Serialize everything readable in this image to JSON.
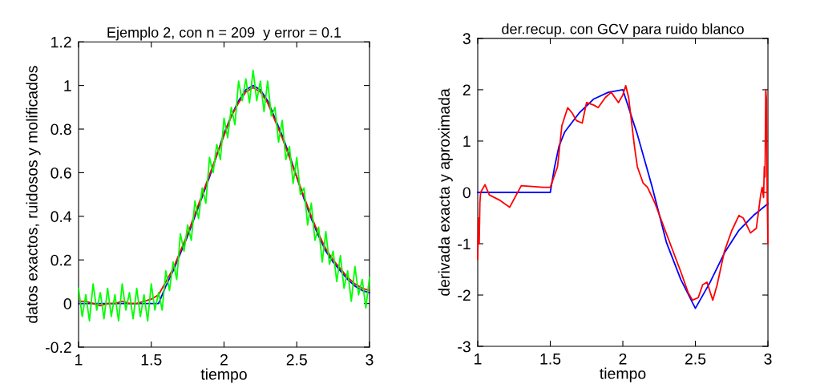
{
  "chart_data": [
    {
      "type": "line",
      "title": "Ejemplo 2, con n = 209  y error = 0.1",
      "xlabel": "tiempo",
      "ylabel": "datos exactos, ruidosos y molificados",
      "xlim": [
        1,
        3
      ],
      "ylim": [
        -0.2,
        1.2
      ],
      "xticks": [
        1,
        1.5,
        2,
        2.5,
        3
      ],
      "yticks": [
        -0.2,
        0,
        0.2,
        0.4,
        0.6,
        0.8,
        1,
        1.2
      ],
      "grid": false,
      "series": [
        {
          "color": "#0000ff",
          "x": [
            1.0,
            1.05,
            1.1,
            1.15,
            1.2,
            1.25,
            1.3,
            1.35,
            1.4,
            1.45,
            1.5,
            1.55,
            1.6,
            1.65,
            1.7,
            1.75,
            1.8,
            1.85,
            1.9,
            1.95,
            2.0,
            2.05,
            2.1,
            2.15,
            2.2,
            2.25,
            2.3,
            2.35,
            2.4,
            2.45,
            2.5,
            2.55,
            2.6,
            2.65,
            2.7,
            2.75,
            2.8,
            2.85,
            2.9,
            2.95,
            3.0
          ],
          "values": [
            0,
            0,
            0,
            0,
            0,
            0,
            0,
            0,
            0,
            0,
            0,
            0,
            0.08,
            0.15,
            0.23,
            0.31,
            0.4,
            0.49,
            0.58,
            0.68,
            0.78,
            0.86,
            0.93,
            0.98,
            1.0,
            0.98,
            0.93,
            0.85,
            0.77,
            0.68,
            0.58,
            0.48,
            0.39,
            0.31,
            0.24,
            0.19,
            0.15,
            0.11,
            0.08,
            0.06,
            0.05
          ]
        },
        {
          "color": "#ff0000",
          "x": [
            1.0,
            1.05,
            1.1,
            1.15,
            1.2,
            1.25,
            1.3,
            1.35,
            1.4,
            1.45,
            1.5,
            1.55,
            1.6,
            1.65,
            1.7,
            1.75,
            1.8,
            1.85,
            1.9,
            1.95,
            2.0,
            2.05,
            2.1,
            2.15,
            2.2,
            2.25,
            2.3,
            2.35,
            2.4,
            2.45,
            2.5,
            2.55,
            2.6,
            2.65,
            2.7,
            2.75,
            2.8,
            2.85,
            2.9,
            2.95,
            3.0
          ],
          "values": [
            0.01,
            0.01,
            0,
            -0.01,
            0,
            0,
            0.01,
            0,
            0,
            0.01,
            0.02,
            0.04,
            0.1,
            0.16,
            0.24,
            0.32,
            0.41,
            0.5,
            0.59,
            0.68,
            0.77,
            0.86,
            0.92,
            0.97,
            0.99,
            0.97,
            0.92,
            0.84,
            0.76,
            0.67,
            0.58,
            0.49,
            0.4,
            0.32,
            0.25,
            0.2,
            0.16,
            0.12,
            0.09,
            0.07,
            0.06
          ]
        },
        {
          "color": "#00ff00",
          "x": [
            1.0,
            1.025,
            1.05,
            1.075,
            1.1,
            1.125,
            1.15,
            1.175,
            1.2,
            1.225,
            1.25,
            1.275,
            1.3,
            1.325,
            1.35,
            1.375,
            1.4,
            1.425,
            1.45,
            1.475,
            1.5,
            1.525,
            1.55,
            1.575,
            1.6,
            1.625,
            1.65,
            1.675,
            1.7,
            1.725,
            1.75,
            1.775,
            1.8,
            1.825,
            1.85,
            1.875,
            1.9,
            1.925,
            1.95,
            1.975,
            2.0,
            2.025,
            2.05,
            2.075,
            2.1,
            2.125,
            2.15,
            2.175,
            2.2,
            2.225,
            2.25,
            2.275,
            2.3,
            2.325,
            2.35,
            2.375,
            2.4,
            2.425,
            2.45,
            2.475,
            2.5,
            2.525,
            2.55,
            2.575,
            2.6,
            2.625,
            2.65,
            2.675,
            2.7,
            2.725,
            2.75,
            2.775,
            2.8,
            2.825,
            2.85,
            2.875,
            2.9,
            2.925,
            2.95,
            2.975,
            3.0
          ],
          "values": [
            0.07,
            -0.06,
            0.04,
            -0.08,
            0.09,
            -0.03,
            0.05,
            -0.07,
            0.07,
            -0.06,
            0.04,
            -0.08,
            0.09,
            -0.03,
            0.05,
            -0.07,
            0.07,
            -0.06,
            0.04,
            -0.08,
            0.09,
            -0.03,
            0.05,
            -0.03,
            0.15,
            0.06,
            0.19,
            0.11,
            0.32,
            0.24,
            0.36,
            0.29,
            0.47,
            0.39,
            0.53,
            0.46,
            0.67,
            0.6,
            0.73,
            0.66,
            0.85,
            0.76,
            0.9,
            0.82,
            1.02,
            0.93,
            1.03,
            0.92,
            1.07,
            0.93,
            1.02,
            0.88,
            1.02,
            0.86,
            0.9,
            0.74,
            0.84,
            0.66,
            0.72,
            0.55,
            0.67,
            0.5,
            0.53,
            0.36,
            0.46,
            0.29,
            0.35,
            0.19,
            0.33,
            0.18,
            0.24,
            0.1,
            0.22,
            0.07,
            0.15,
            0.01,
            0.17,
            0.04,
            0.11,
            -0.02,
            0.12
          ]
        }
      ]
    },
    {
      "type": "line",
      "title": "der.recup. con GCV para ruido blanco",
      "xlabel": "tiempo",
      "ylabel": "derivada exacta y aproximada",
      "xlim": [
        1,
        3
      ],
      "ylim": [
        -3,
        3
      ],
      "xticks": [
        1,
        1.5,
        2,
        2.5,
        3
      ],
      "yticks": [
        -3,
        -2,
        -1,
        0,
        1,
        2,
        3
      ],
      "grid": false,
      "series": [
        {
          "color": "#0000ff",
          "x": [
            1.0,
            1.5,
            1.5,
            1.53,
            1.56,
            1.6,
            1.7,
            1.8,
            1.9,
            2.0,
            2.1,
            2.2,
            2.3,
            2.4,
            2.5,
            2.6,
            2.7,
            2.8,
            2.9,
            3.0
          ],
          "values": [
            0,
            0,
            0,
            0.5,
            0.9,
            1.18,
            1.55,
            1.82,
            1.95,
            2.0,
            1.13,
            0.13,
            -0.97,
            -1.7,
            -2.26,
            -1.76,
            -1.18,
            -0.74,
            -0.45,
            -0.22
          ]
        },
        {
          "color": "#ff0000",
          "x": [
            1.0,
            1.005,
            1.01,
            1.015,
            1.02,
            1.05,
            1.08,
            1.15,
            1.22,
            1.3,
            1.45,
            1.5,
            1.55,
            1.58,
            1.62,
            1.65,
            1.68,
            1.72,
            1.75,
            1.8,
            1.83,
            1.88,
            1.92,
            1.97,
            2.0,
            2.02,
            2.04,
            2.08,
            2.1,
            2.14,
            2.17,
            2.22,
            2.3,
            2.4,
            2.45,
            2.48,
            2.52,
            2.55,
            2.58,
            2.62,
            2.65,
            2.7,
            2.75,
            2.8,
            2.83,
            2.88,
            2.92,
            2.95,
            2.96,
            2.97,
            2.975,
            2.98,
            2.985,
            2.99,
            2.995,
            3.0
          ],
          "values": [
            -1.3,
            -0.5,
            -1.0,
            -0.2,
            0,
            0.15,
            -0.05,
            -0.15,
            -0.29,
            0.13,
            0.1,
            0.1,
            0.5,
            1.3,
            1.65,
            1.55,
            1.4,
            1.35,
            1.75,
            1.7,
            1.65,
            1.85,
            1.95,
            1.75,
            1.9,
            2.08,
            1.85,
            0.9,
            0.5,
            0.18,
            0.1,
            -0.2,
            -0.8,
            -1.55,
            -1.95,
            -2.1,
            -2.05,
            -1.8,
            -1.75,
            -2.1,
            -1.8,
            -1.15,
            -0.75,
            -0.45,
            -0.5,
            -0.79,
            -0.7,
            -0.05,
            0.1,
            -0.1,
            0.5,
            0.3,
            2.0,
            1.8,
            0,
            -1.0
          ]
        }
      ]
    }
  ]
}
